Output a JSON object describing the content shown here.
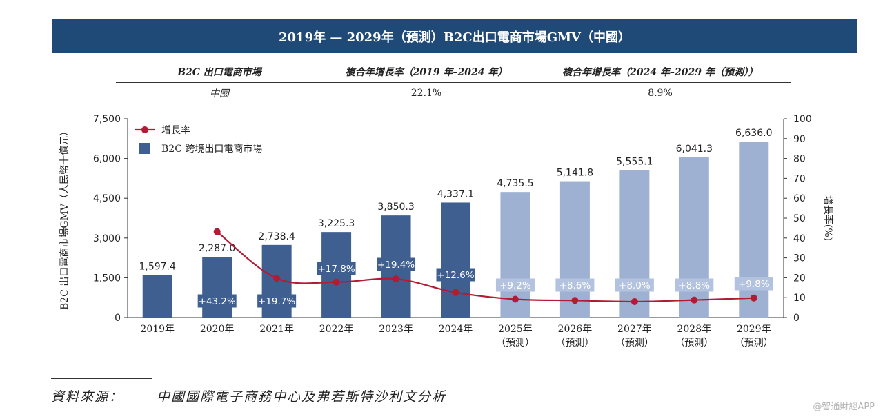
{
  "title": "2019年 — 2029年（預測）B2C出口電商市場GMV（中國）",
  "cagr_table": {
    "headers": [
      "B2C 出口電商市場",
      "複合年增長率（2019 年–2024 年）",
      "複合年增長率（2024 年–2029 年（預測））"
    ],
    "row": [
      "中國",
      "22.1%",
      "8.9%"
    ]
  },
  "chart_data": {
    "type": "bar",
    "categories": [
      [
        "2019年"
      ],
      [
        "2020年"
      ],
      [
        "2021年"
      ],
      [
        "2022年"
      ],
      [
        "2023年"
      ],
      [
        "2024年"
      ],
      [
        "2025年",
        "（預測）"
      ],
      [
        "2026年",
        "（預測）"
      ],
      [
        "2027年",
        "（預測）"
      ],
      [
        "2028年",
        "（預測）"
      ],
      [
        "2029年",
        "（預測）"
      ]
    ],
    "forecast_from_index": 6,
    "series": [
      {
        "name": "B2C 跨境出口電商市場",
        "axis": "left",
        "values": [
          1597.4,
          2287.0,
          2738.4,
          3225.3,
          3850.3,
          4337.1,
          4735.5,
          5141.8,
          5555.1,
          6041.3,
          6636.0
        ],
        "labels": [
          "1,597.4",
          "2,287.0",
          "2,738.4",
          "3,225.3",
          "3,850.3",
          "4,337.1",
          "4,735.5",
          "5,141.8",
          "5,555.1",
          "6,041.3",
          "6,636.0"
        ]
      },
      {
        "name": "增長率",
        "axis": "right",
        "type": "line",
        "values": [
          null,
          43.2,
          19.7,
          17.8,
          19.4,
          12.6,
          9.2,
          8.6,
          8.0,
          8.8,
          9.8
        ],
        "labels": [
          "",
          "+43.2%",
          "+19.7%",
          "+17.8%",
          "+19.4%",
          "+12.6%",
          "+9.2%",
          "+8.6%",
          "+8.0%",
          "+8.8%",
          "+9.8%"
        ]
      }
    ],
    "ylabel": "B2C 出口電商市場GMV（人民幣十億元）",
    "ylabel_right": "增長率(%)",
    "ylim": [
      0,
      7500
    ],
    "yticks": [
      "0",
      "1,500",
      "3,000",
      "4,500",
      "6,000",
      "7,500"
    ],
    "ylim_right": [
      0,
      100
    ],
    "yticks_right": [
      "0",
      "10",
      "20",
      "30",
      "40",
      "50",
      "60",
      "70",
      "80",
      "90",
      "100"
    ],
    "legend_position": "top-left",
    "grid": false
  },
  "colors": {
    "banner": "#1f4a78",
    "bar_actual": "#3f5f90",
    "bar_forecast": "#9fb1d2",
    "line": "#b31b34",
    "label_actual_bg": "#3f5f90",
    "label_forecast_bg": "#b3c2de"
  },
  "source": {
    "label": "資料來源：",
    "text": "中國國際電子商務中心及弗若斯特沙利文分析"
  },
  "watermark": "@智通財經APP"
}
